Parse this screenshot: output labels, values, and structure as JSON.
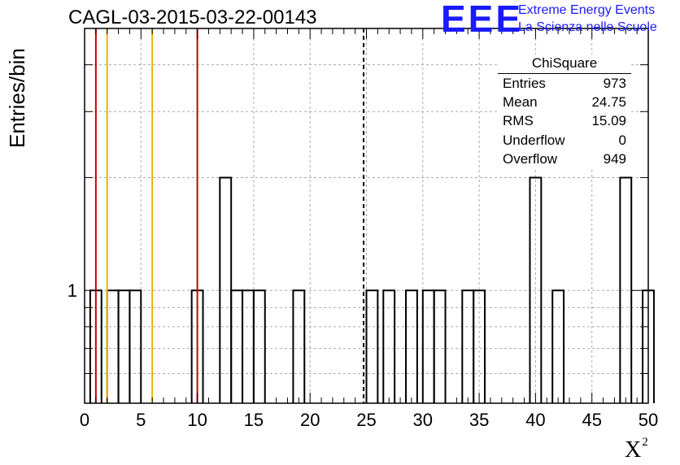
{
  "title": "CAGL-03-2015-03-22-00143",
  "logo": {
    "mark": "EEE",
    "line1": "Extreme Energy Events",
    "line2": "La Scienza nelle Scuole"
  },
  "stats": {
    "name": "ChiSquare",
    "rows": [
      {
        "label": "Entries",
        "value": "973"
      },
      {
        "label": "Mean",
        "value": "24.75"
      },
      {
        "label": "RMS",
        "value": "15.09"
      },
      {
        "label": "Underflow",
        "value": "0"
      },
      {
        "label": "Overflow",
        "value": "949"
      }
    ]
  },
  "chart_data": {
    "type": "bar",
    "title": "CAGL-03-2015-03-22-00143",
    "xlabel": "X",
    "xlabel_superscript": "2",
    "ylabel": "Entries/bin",
    "xlim": [
      0,
      50
    ],
    "ylim": [
      0.5,
      5
    ],
    "yscale": "log",
    "bin_width": 1,
    "x_ticks": [
      "0",
      "5",
      "10",
      "15",
      "20",
      "25",
      "30",
      "35",
      "40",
      "45",
      "50"
    ],
    "y_ticks": [
      "1"
    ],
    "grid": true,
    "bins": [
      {
        "x": 1,
        "count": 1
      },
      {
        "x": 2.5,
        "count": 1
      },
      {
        "x": 3.5,
        "count": 1
      },
      {
        "x": 4.5,
        "count": 1
      },
      {
        "x": 10,
        "count": 1
      },
      {
        "x": 12.5,
        "count": 2
      },
      {
        "x": 13.5,
        "count": 1
      },
      {
        "x": 14.5,
        "count": 1
      },
      {
        "x": 15.5,
        "count": 1
      },
      {
        "x": 19,
        "count": 1
      },
      {
        "x": 25.5,
        "count": 1
      },
      {
        "x": 27,
        "count": 1
      },
      {
        "x": 29,
        "count": 1
      },
      {
        "x": 30.5,
        "count": 1
      },
      {
        "x": 31.5,
        "count": 1
      },
      {
        "x": 34,
        "count": 1
      },
      {
        "x": 35,
        "count": 1
      },
      {
        "x": 40,
        "count": 2
      },
      {
        "x": 42,
        "count": 1
      },
      {
        "x": 48,
        "count": 2
      },
      {
        "x": 50,
        "count": 1
      }
    ],
    "reference_lines": [
      {
        "x": 1,
        "color": "#cc0000",
        "style": "solid"
      },
      {
        "x": 2,
        "color": "#e6b800",
        "style": "solid"
      },
      {
        "x": 6,
        "color": "#e6b800",
        "style": "solid"
      },
      {
        "x": 10,
        "color": "#cc0000",
        "style": "solid"
      },
      {
        "x": 24.75,
        "color": "#000000",
        "style": "dashed"
      }
    ]
  }
}
